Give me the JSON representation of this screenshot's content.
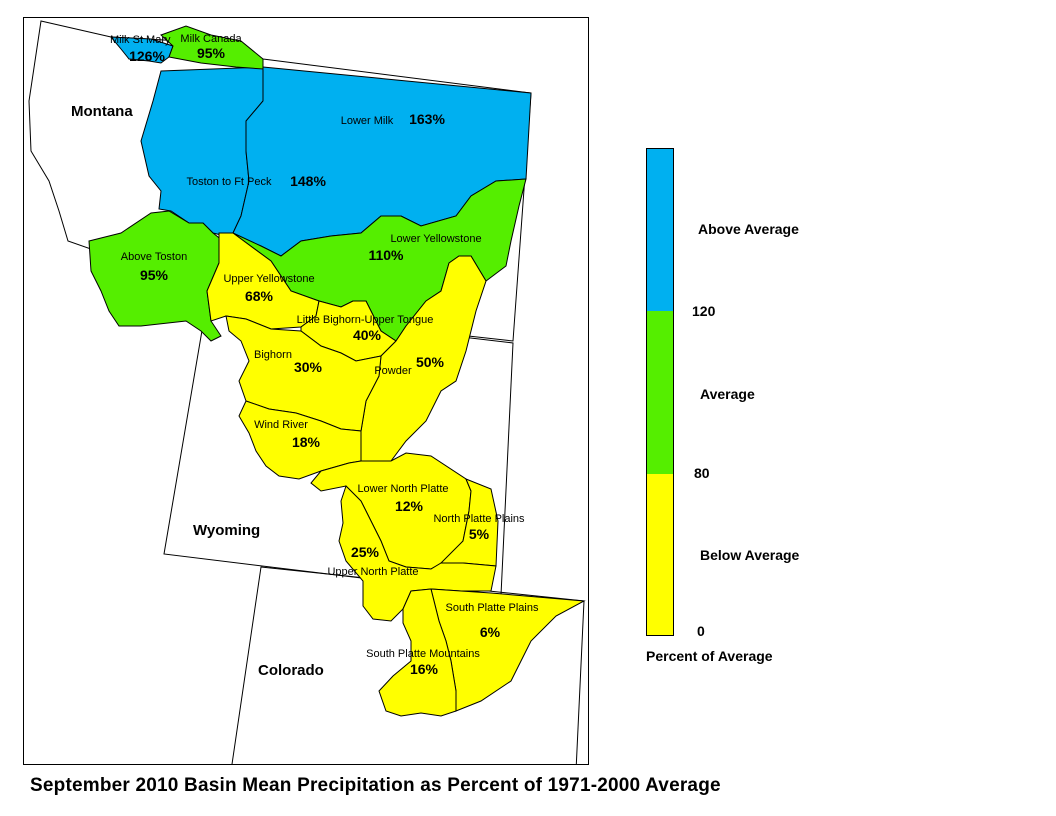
{
  "title": "September 2010 Basin Mean Precipitation as Percent of 1971-2000 Average",
  "colors": {
    "above": "#00b0f0",
    "average": "#55ee00",
    "below": "#ffff00",
    "outline": "#000000"
  },
  "states": {
    "montana": "Montana",
    "wyoming": "Wyoming",
    "colorado": "Colorado"
  },
  "basins": [
    {
      "id": "milk-st-mary",
      "name": "Milk St Mary",
      "pct": "126%",
      "category": "above"
    },
    {
      "id": "milk-canada",
      "name": "Milk Canada",
      "pct": "95%",
      "category": "average"
    },
    {
      "id": "lower-milk",
      "name": "Lower Milk",
      "pct": "163%",
      "category": "above"
    },
    {
      "id": "toston-ft-peck",
      "name": "Toston to Ft Peck",
      "pct": "148%",
      "category": "above"
    },
    {
      "id": "above-toston",
      "name": "Above Toston",
      "pct": "95%",
      "category": "average"
    },
    {
      "id": "lower-yellowstone",
      "name": "Lower Yellowstone",
      "pct": "110%",
      "category": "average"
    },
    {
      "id": "upper-yellowstone",
      "name": "Upper Yellowstone",
      "pct": "68%",
      "category": "below"
    },
    {
      "id": "little-bighorn",
      "name": "Little Bighorn-Upper Tongue",
      "pct": "40%",
      "category": "below"
    },
    {
      "id": "bighorn",
      "name": "Bighorn",
      "pct": "30%",
      "category": "below"
    },
    {
      "id": "powder",
      "name": "Powder",
      "pct": "50%",
      "category": "below"
    },
    {
      "id": "wind-river",
      "name": "Wind River",
      "pct": "18%",
      "category": "below"
    },
    {
      "id": "lower-north-platte",
      "name": "Lower North Platte",
      "pct": "12%",
      "category": "below"
    },
    {
      "id": "north-platte-plains",
      "name": "North Platte Plains",
      "pct": "5%",
      "category": "below"
    },
    {
      "id": "upper-north-platte",
      "name": "Upper North Platte",
      "pct": "25%",
      "category": "below"
    },
    {
      "id": "south-platte-plains",
      "name": "South Platte Plains",
      "pct": "6%",
      "category": "below"
    },
    {
      "id": "south-platte-mountains",
      "name": "South Platte Mountains",
      "pct": "16%",
      "category": "below"
    }
  ],
  "legend": {
    "categories": [
      "Above Average",
      "Average",
      "Below Average"
    ],
    "breaks": [
      "120",
      "80",
      "0"
    ],
    "caption": "Percent of Average"
  }
}
